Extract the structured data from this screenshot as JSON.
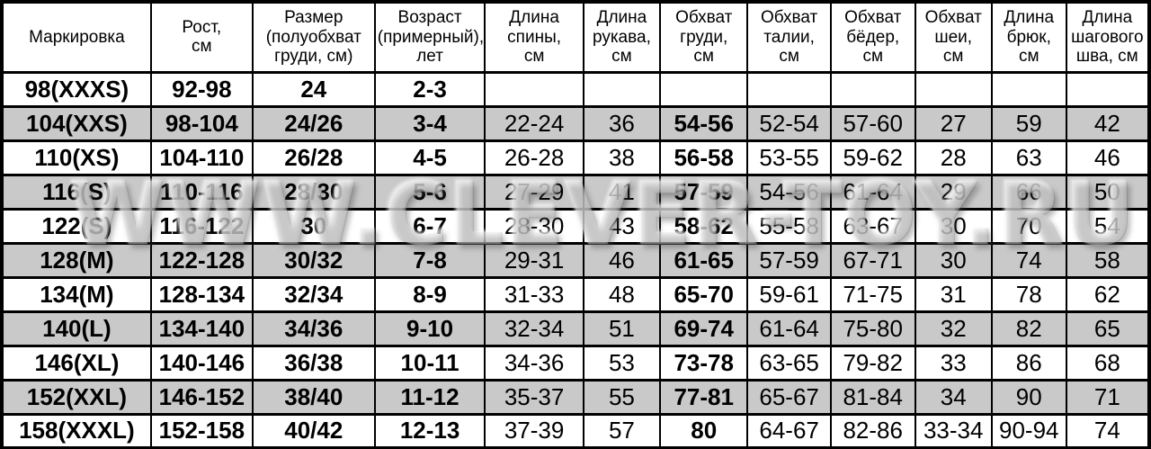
{
  "watermark": "WWW.CLEVER-TOY.RU",
  "colors": {
    "row_shaded": "#c9c9c9",
    "row_plain": "#ffffff",
    "grid": "#000000",
    "text": "#000000"
  },
  "chart_data": {
    "type": "table",
    "columns": [
      "Маркировка",
      "Рост,\nсм",
      "Размер\n(полуобхват\nгруди, см)",
      "Возраст\n(примерный),\nлет",
      "Длина\nспины,\nсм",
      "Длина\nрукава,\nсм",
      "Обхват\nгруди,\nсм",
      "Обхват\nталии,\nсм",
      "Обхват\nбёдер,\nсм",
      "Обхват\nшеи,\nсм",
      "Длина\nбрюк,\nсм",
      "Длина\nшагового\nшва, см"
    ],
    "rows": [
      [
        "98(XXXS)",
        "92-98",
        "24",
        "2-3",
        "",
        "",
        "",
        "",
        "",
        "",
        "",
        ""
      ],
      [
        "104(XXS)",
        "98-104",
        "24/26",
        "3-4",
        "22-24",
        "36",
        "54-56",
        "52-54",
        "57-60",
        "27",
        "59",
        "42"
      ],
      [
        "110(XS)",
        "104-110",
        "26/28",
        "4-5",
        "26-28",
        "38",
        "56-58",
        "53-55",
        "59-62",
        "28",
        "63",
        "46"
      ],
      [
        "116(S)",
        "110-116",
        "28/30",
        "5-6",
        "27-29",
        "41",
        "57-59",
        "54-56",
        "61-64",
        "29",
        "66",
        "50"
      ],
      [
        "122(S)",
        "116-122",
        "30",
        "6-7",
        "28-30",
        "43",
        "58-62",
        "55-58",
        "63-67",
        "30",
        "70",
        "54"
      ],
      [
        "128(M)",
        "122-128",
        "30/32",
        "7-8",
        "29-31",
        "46",
        "61-65",
        "57-59",
        "67-71",
        "30",
        "74",
        "58"
      ],
      [
        "134(M)",
        "128-134",
        "32/34",
        "8-9",
        "31-33",
        "48",
        "65-70",
        "59-61",
        "71-75",
        "31",
        "78",
        "62"
      ],
      [
        "140(L)",
        "134-140",
        "34/36",
        "9-10",
        "32-34",
        "51",
        "69-74",
        "61-64",
        "75-80",
        "32",
        "82",
        "65"
      ],
      [
        "146(XL)",
        "140-146",
        "36/38",
        "10-11",
        "34-36",
        "53",
        "73-78",
        "63-65",
        "79-82",
        "33",
        "86",
        "68"
      ],
      [
        "152(XXL)",
        "146-152",
        "38/40",
        "11-12",
        "35-37",
        "55",
        "77-81",
        "65-67",
        "81-84",
        "34",
        "90",
        "71"
      ],
      [
        "158(XXXL)",
        "152-158",
        "40/42",
        "12-13",
        "37-39",
        "57",
        "80",
        "64-67",
        "82-86",
        "33-34",
        "90-94",
        "74"
      ]
    ],
    "bold_columns": [
      0,
      1,
      2,
      3,
      6
    ],
    "shaded_row_indices": [
      1,
      3,
      5,
      7,
      9
    ]
  }
}
